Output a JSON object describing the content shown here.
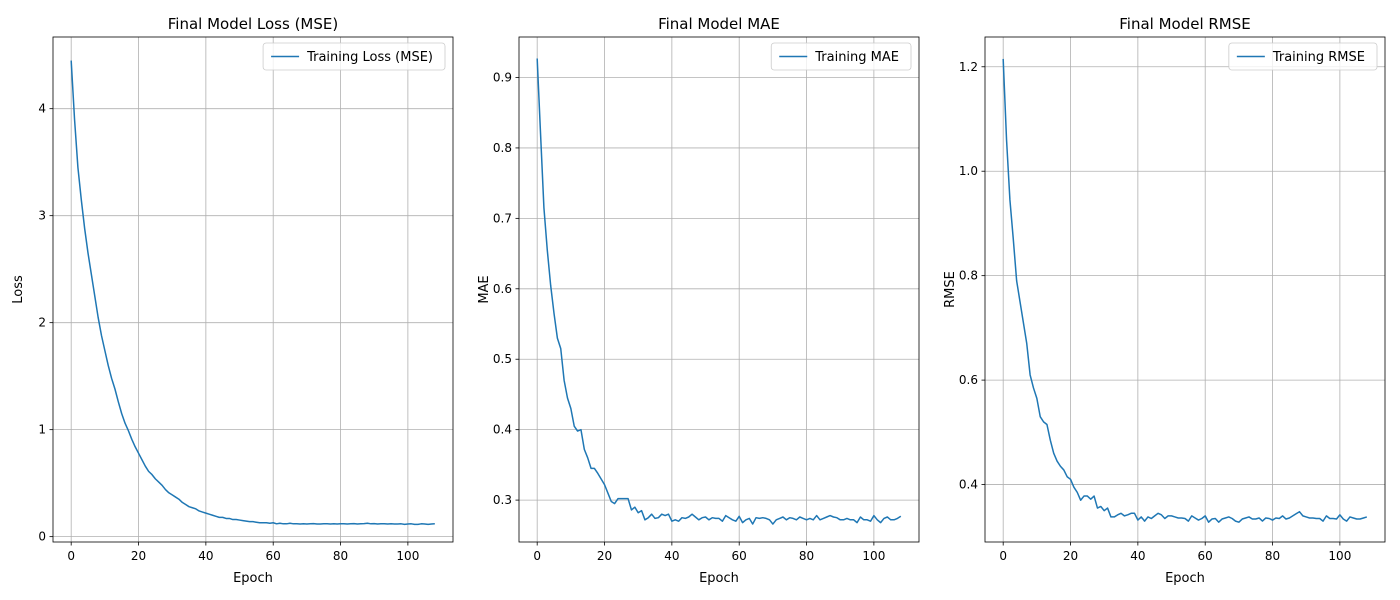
{
  "chart_data": [
    {
      "type": "line",
      "title": "Final Model Loss (MSE)",
      "xlabel": "Epoch",
      "ylabel": "Loss",
      "xlim": [
        -5.4,
        113.4
      ],
      "ylim": [
        -0.05,
        4.67
      ],
      "xticks": [
        0,
        20,
        40,
        60,
        80,
        100
      ],
      "yticks": [
        0,
        1,
        2,
        3,
        4
      ],
      "grid": true,
      "legend_placement": "top-right",
      "color": "#1f77b4",
      "series": [
        {
          "name": "Training Loss (MSE)",
          "x": [
            0,
            1,
            2,
            3,
            4,
            5,
            6,
            7,
            8,
            9,
            10,
            11,
            12,
            13,
            14,
            15,
            16,
            17,
            18,
            19,
            20,
            21,
            22,
            23,
            24,
            25,
            26,
            27,
            28,
            29,
            30,
            31,
            32,
            33,
            34,
            35,
            36,
            37,
            38,
            39,
            40,
            41,
            42,
            43,
            44,
            45,
            46,
            47,
            48,
            49,
            50,
            51,
            52,
            53,
            54,
            55,
            56,
            57,
            58,
            59,
            60,
            61,
            62,
            63,
            64,
            65,
            66,
            67,
            68,
            69,
            70,
            71,
            72,
            73,
            74,
            75,
            76,
            77,
            78,
            79,
            80,
            81,
            82,
            83,
            84,
            85,
            86,
            87,
            88,
            89,
            90,
            91,
            92,
            93,
            94,
            95,
            96,
            97,
            98,
            99,
            100,
            101,
            102,
            103,
            104,
            105,
            106,
            107,
            108
          ],
          "values": [
            4.45,
            3.9,
            3.45,
            3.15,
            2.88,
            2.65,
            2.45,
            2.25,
            2.05,
            1.88,
            1.74,
            1.6,
            1.48,
            1.38,
            1.26,
            1.15,
            1.06,
            0.99,
            0.91,
            0.84,
            0.78,
            0.72,
            0.66,
            0.61,
            0.58,
            0.54,
            0.51,
            0.48,
            0.44,
            0.41,
            0.39,
            0.37,
            0.35,
            0.32,
            0.3,
            0.28,
            0.27,
            0.26,
            0.24,
            0.23,
            0.22,
            0.21,
            0.2,
            0.19,
            0.18,
            0.18,
            0.17,
            0.17,
            0.16,
            0.16,
            0.155,
            0.15,
            0.145,
            0.14,
            0.14,
            0.135,
            0.13,
            0.13,
            0.13,
            0.125,
            0.13,
            0.12,
            0.125,
            0.12,
            0.12,
            0.125,
            0.12,
            0.12,
            0.118,
            0.12,
            0.118,
            0.12,
            0.122,
            0.118,
            0.118,
            0.12,
            0.12,
            0.118,
            0.12,
            0.118,
            0.12,
            0.12,
            0.118,
            0.12,
            0.122,
            0.118,
            0.12,
            0.122,
            0.125,
            0.12,
            0.122,
            0.118,
            0.12,
            0.12,
            0.118,
            0.12,
            0.118,
            0.118,
            0.12,
            0.115,
            0.118,
            0.12,
            0.115,
            0.115,
            0.12,
            0.118,
            0.115,
            0.118,
            0.12
          ]
        }
      ]
    },
    {
      "type": "line",
      "title": "Final Model MAE",
      "xlabel": "Epoch",
      "ylabel": "MAE",
      "xlim": [
        -5.4,
        113.4
      ],
      "ylim": [
        0.2405,
        0.9575
      ],
      "xticks": [
        0,
        20,
        40,
        60,
        80,
        100
      ],
      "yticks": [
        0.3,
        0.4,
        0.5,
        0.6,
        0.7,
        0.8,
        0.9
      ],
      "grid": true,
      "legend_placement": "top-right",
      "color": "#1f77b4",
      "series": [
        {
          "name": "Training MAE",
          "x": [
            0,
            1,
            2,
            3,
            4,
            5,
            6,
            7,
            8,
            9,
            10,
            11,
            12,
            13,
            14,
            15,
            16,
            17,
            18,
            19,
            20,
            21,
            22,
            23,
            24,
            25,
            26,
            27,
            28,
            29,
            30,
            31,
            32,
            33,
            34,
            35,
            36,
            37,
            38,
            39,
            40,
            41,
            42,
            43,
            44,
            45,
            46,
            47,
            48,
            49,
            50,
            51,
            52,
            53,
            54,
            55,
            56,
            57,
            58,
            59,
            60,
            61,
            62,
            63,
            64,
            65,
            66,
            67,
            68,
            69,
            70,
            71,
            72,
            73,
            74,
            75,
            76,
            77,
            78,
            79,
            80,
            81,
            82,
            83,
            84,
            85,
            86,
            87,
            88,
            89,
            90,
            91,
            92,
            93,
            94,
            95,
            96,
            97,
            98,
            99,
            100,
            101,
            102,
            103,
            104,
            105,
            106,
            107,
            108
          ],
          "values": [
            0.927,
            0.82,
            0.715,
            0.655,
            0.605,
            0.565,
            0.53,
            0.515,
            0.47,
            0.445,
            0.43,
            0.405,
            0.398,
            0.4,
            0.372,
            0.36,
            0.345,
            0.345,
            0.338,
            0.33,
            0.322,
            0.31,
            0.298,
            0.295,
            0.302,
            0.302,
            0.302,
            0.302,
            0.286,
            0.29,
            0.282,
            0.285,
            0.272,
            0.275,
            0.28,
            0.274,
            0.275,
            0.28,
            0.278,
            0.28,
            0.27,
            0.272,
            0.27,
            0.275,
            0.274,
            0.276,
            0.28,
            0.276,
            0.272,
            0.275,
            0.276,
            0.272,
            0.275,
            0.274,
            0.274,
            0.27,
            0.278,
            0.275,
            0.272,
            0.27,
            0.277,
            0.268,
            0.272,
            0.274,
            0.266,
            0.275,
            0.274,
            0.275,
            0.274,
            0.272,
            0.266,
            0.272,
            0.274,
            0.276,
            0.272,
            0.275,
            0.274,
            0.272,
            0.276,
            0.274,
            0.272,
            0.274,
            0.272,
            0.278,
            0.272,
            0.274,
            0.276,
            0.278,
            0.276,
            0.275,
            0.272,
            0.272,
            0.274,
            0.272,
            0.272,
            0.268,
            0.276,
            0.272,
            0.272,
            0.27,
            0.278,
            0.272,
            0.268,
            0.274,
            0.276,
            0.272,
            0.272,
            0.274,
            0.277
          ]
        }
      ]
    },
    {
      "type": "line",
      "title": "Final Model RMSE",
      "xlabel": "Epoch",
      "ylabel": "RMSE",
      "xlim": [
        -5.4,
        113.4
      ],
      "ylim": [
        0.29,
        1.257
      ],
      "xticks": [
        0,
        20,
        40,
        60,
        80,
        100
      ],
      "yticks": [
        0.4,
        0.6,
        0.8,
        1.0,
        1.2
      ],
      "ytick_labels": [
        "0.4",
        "0.6",
        "0.8",
        "1.0",
        "1.2"
      ],
      "grid": true,
      "legend_placement": "top-right",
      "color": "#1f77b4",
      "series": [
        {
          "name": "Training RMSE",
          "x": [
            0,
            1,
            2,
            3,
            4,
            5,
            6,
            7,
            8,
            9,
            10,
            11,
            12,
            13,
            14,
            15,
            16,
            17,
            18,
            19,
            20,
            21,
            22,
            23,
            24,
            25,
            26,
            27,
            28,
            29,
            30,
            31,
            32,
            33,
            34,
            35,
            36,
            37,
            38,
            39,
            40,
            41,
            42,
            43,
            44,
            45,
            46,
            47,
            48,
            49,
            50,
            51,
            52,
            53,
            54,
            55,
            56,
            57,
            58,
            59,
            60,
            61,
            62,
            63,
            64,
            65,
            66,
            67,
            68,
            69,
            70,
            71,
            72,
            73,
            74,
            75,
            76,
            77,
            78,
            79,
            80,
            81,
            82,
            83,
            84,
            85,
            86,
            87,
            88,
            89,
            90,
            91,
            92,
            93,
            94,
            95,
            96,
            97,
            98,
            99,
            100,
            101,
            102,
            103,
            104,
            105,
            106,
            107,
            108
          ],
          "values": [
            1.215,
            1.06,
            0.945,
            0.87,
            0.79,
            0.75,
            0.71,
            0.67,
            0.61,
            0.585,
            0.565,
            0.53,
            0.52,
            0.515,
            0.485,
            0.46,
            0.445,
            0.435,
            0.428,
            0.415,
            0.41,
            0.395,
            0.385,
            0.37,
            0.378,
            0.378,
            0.372,
            0.378,
            0.355,
            0.358,
            0.35,
            0.355,
            0.338,
            0.338,
            0.342,
            0.345,
            0.34,
            0.342,
            0.345,
            0.345,
            0.332,
            0.338,
            0.33,
            0.338,
            0.335,
            0.34,
            0.345,
            0.342,
            0.335,
            0.34,
            0.34,
            0.338,
            0.336,
            0.336,
            0.335,
            0.33,
            0.34,
            0.336,
            0.332,
            0.335,
            0.34,
            0.328,
            0.334,
            0.335,
            0.328,
            0.334,
            0.336,
            0.338,
            0.335,
            0.33,
            0.328,
            0.334,
            0.336,
            0.338,
            0.334,
            0.334,
            0.336,
            0.33,
            0.336,
            0.335,
            0.332,
            0.336,
            0.335,
            0.34,
            0.334,
            0.336,
            0.34,
            0.344,
            0.348,
            0.34,
            0.338,
            0.336,
            0.336,
            0.335,
            0.335,
            0.33,
            0.34,
            0.335,
            0.335,
            0.334,
            0.342,
            0.334,
            0.33,
            0.338,
            0.336,
            0.334,
            0.334,
            0.336,
            0.338
          ]
        }
      ]
    }
  ]
}
